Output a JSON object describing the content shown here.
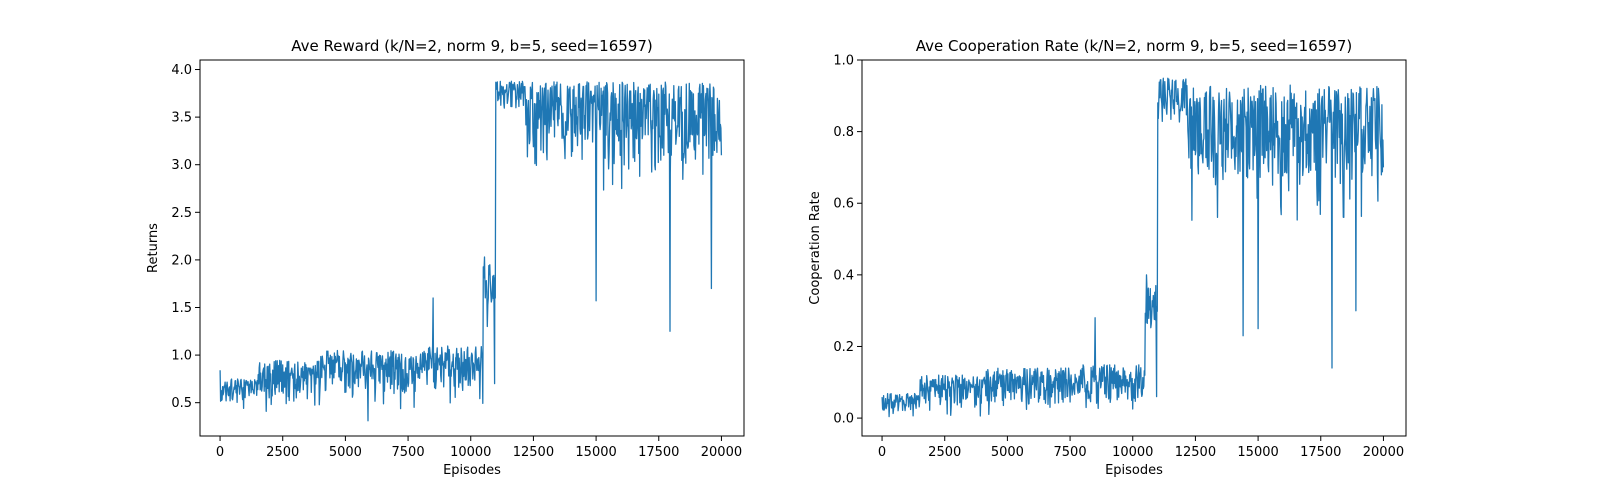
{
  "chart_data": [
    {
      "type": "line",
      "title": "Ave Reward (k/N=2, norm 9, b=5, seed=16597)",
      "xlabel": "Episodes",
      "ylabel": "Returns",
      "xlim": [
        -800,
        20900
      ],
      "ylim": [
        0.15,
        4.1
      ],
      "xticks": [
        0,
        2500,
        5000,
        7500,
        10000,
        12500,
        15000,
        17500,
        20000
      ],
      "xtick_labels": [
        "0",
        "2500",
        "5000",
        "7500",
        "10000",
        "12500",
        "15000",
        "17500",
        "20000"
      ],
      "yticks": [
        0.5,
        1.0,
        1.5,
        2.0,
        2.5,
        3.0,
        3.5,
        4.0
      ],
      "ytick_labels": [
        "0.5",
        "1.0",
        "1.5",
        "2.0",
        "2.5",
        "3.0",
        "3.5",
        "4.0"
      ],
      "grid": false,
      "series": [
        {
          "color": "#1f77b4",
          "x_range": [
            0,
            20000
          ],
          "phases": [
            {
              "x": [
                0,
                1500
              ],
              "low": 0.42,
              "high": 0.75
            },
            {
              "x": [
                1500,
                4000
              ],
              "low": 0.4,
              "high": 0.95
            },
            {
              "x": [
                4000,
                8000
              ],
              "low": 0.42,
              "high": 1.05
            },
            {
              "x": [
                8000,
                10500
              ],
              "low": 0.45,
              "high": 1.1
            },
            {
              "x": [
                10500,
                11000
              ],
              "low": 1.3,
              "high": 1.95
            },
            {
              "x": [
                11000,
                12200
              ],
              "low": 3.5,
              "high": 3.88
            },
            {
              "x": [
                12200,
                20000
              ],
              "low": 2.7,
              "high": 3.87
            }
          ],
          "notable_points": [
            {
              "x": 0,
              "y": 0.84
            },
            {
              "x": 5900,
              "y": 0.31
            },
            {
              "x": 8500,
              "y": 1.6
            },
            {
              "x": 10550,
              "y": 2.03
            },
            {
              "x": 10950,
              "y": 0.7
            },
            {
              "x": 15000,
              "y": 1.57
            },
            {
              "x": 17950,
              "y": 1.25
            },
            {
              "x": 19600,
              "y": 1.7
            },
            {
              "x": 20000,
              "y": 3.1
            }
          ]
        }
      ]
    },
    {
      "type": "line",
      "title": "Ave Cooperation Rate (k/N=2, norm 9, b=5, seed=16597)",
      "xlabel": "Episodes",
      "ylabel": "Cooperation Rate",
      "xlim": [
        -800,
        20900
      ],
      "ylim": [
        -0.05,
        1.0
      ],
      "xticks": [
        0,
        2500,
        5000,
        7500,
        10000,
        12500,
        15000,
        17500,
        20000
      ],
      "xtick_labels": [
        "0",
        "2500",
        "5000",
        "7500",
        "10000",
        "12500",
        "15000",
        "17500",
        "20000"
      ],
      "yticks": [
        0.0,
        0.2,
        0.4,
        0.6,
        0.8,
        1.0
      ],
      "ytick_labels": [
        "0.0",
        "0.2",
        "0.4",
        "0.6",
        "0.8",
        "1.0"
      ],
      "grid": false,
      "series": [
        {
          "color": "#1f77b4",
          "x_range": [
            0,
            20000
          ],
          "phases": [
            {
              "x": [
                0,
                1500
              ],
              "low": 0.0,
              "high": 0.07
            },
            {
              "x": [
                1500,
                4000
              ],
              "low": 0.0,
              "high": 0.12
            },
            {
              "x": [
                4000,
                8000
              ],
              "low": 0.0,
              "high": 0.14
            },
            {
              "x": [
                8000,
                10500
              ],
              "low": 0.01,
              "high": 0.15
            },
            {
              "x": [
                10500,
                11000
              ],
              "low": 0.2,
              "high": 0.38
            },
            {
              "x": [
                11000,
                12200
              ],
              "low": 0.76,
              "high": 0.95
            },
            {
              "x": [
                12200,
                20000
              ],
              "low": 0.55,
              "high": 0.93
            }
          ],
          "notable_points": [
            {
              "x": 8500,
              "y": 0.28
            },
            {
              "x": 10550,
              "y": 0.4
            },
            {
              "x": 10950,
              "y": 0.06
            },
            {
              "x": 14400,
              "y": 0.23
            },
            {
              "x": 15000,
              "y": 0.25
            },
            {
              "x": 17950,
              "y": 0.14
            },
            {
              "x": 18900,
              "y": 0.3
            },
            {
              "x": 20000,
              "y": 0.7
            }
          ]
        }
      ]
    }
  ]
}
